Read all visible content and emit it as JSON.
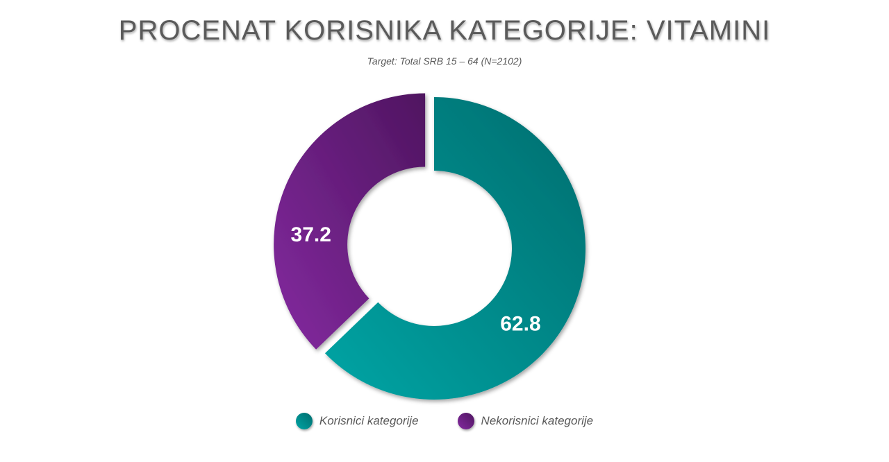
{
  "chart_data": {
    "type": "pie",
    "variant": "donut",
    "title": "PROCENAT KORISNIKA KATEGORIJE: VITAMINI",
    "subtitle": "Target: Total SRB 15 – 64 (N=2102)",
    "categories": [
      "Korisnici kategorije",
      "Nekorisnici kategorije"
    ],
    "values": [
      62.8,
      37.2
    ],
    "data_labels": [
      "62.8",
      "37.2"
    ],
    "colors": [
      "#00999a",
      "#7a2590"
    ],
    "legend_position": "bottom",
    "exploded_slice": "Nekorisnici kategorije"
  }
}
